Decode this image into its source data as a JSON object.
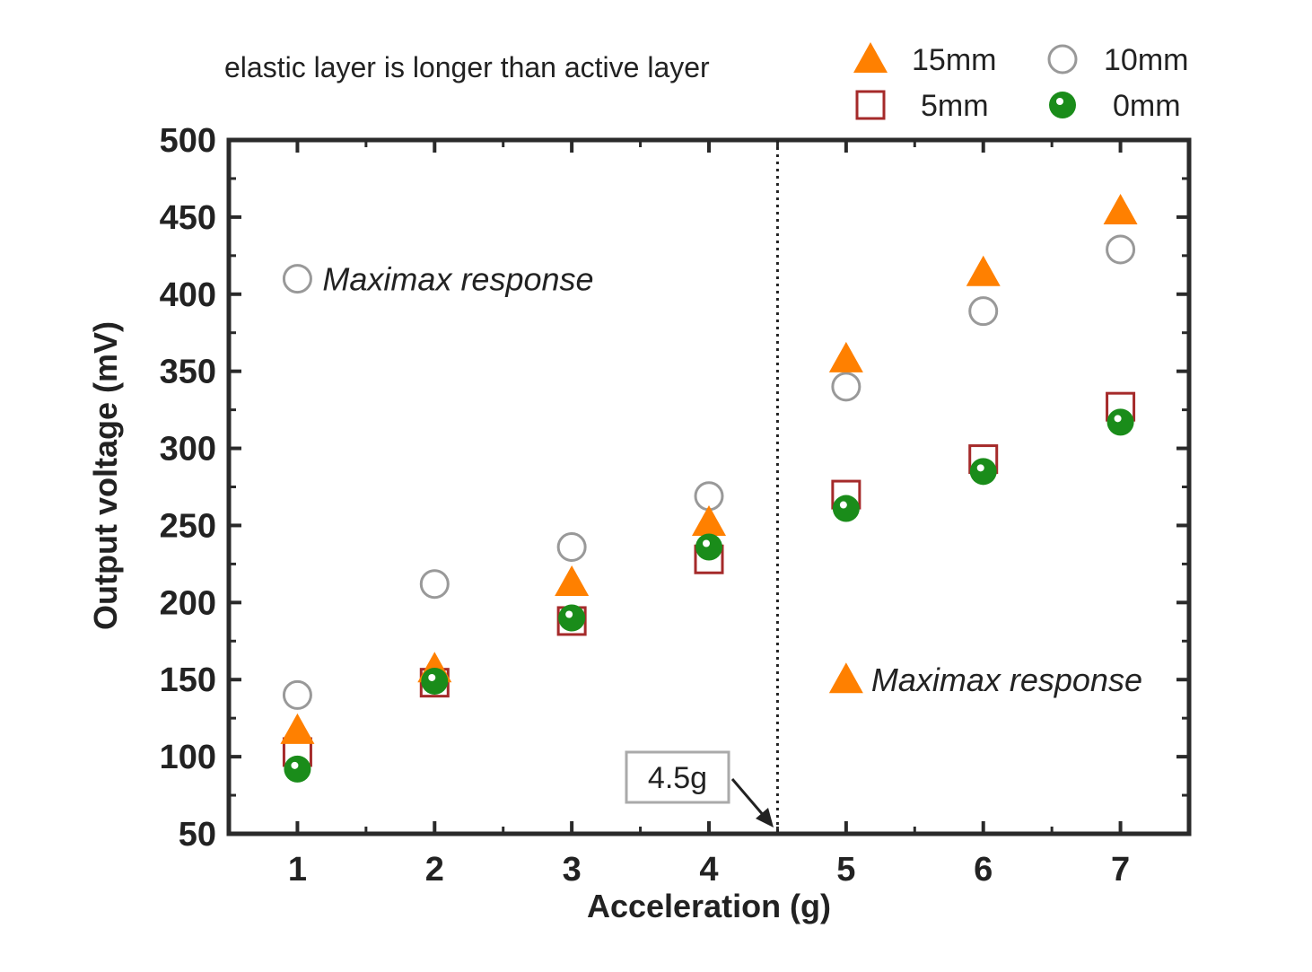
{
  "chart_data": {
    "type": "scatter",
    "title": "elastic layer is longer than active layer",
    "xlabel": "Acceleration (g)",
    "ylabel": "Output voltage (mV)",
    "xlim": [
      0.5,
      7.5
    ],
    "ylim": [
      50,
      500
    ],
    "xticks": [
      1,
      2,
      3,
      4,
      5,
      6,
      7
    ],
    "yticks": [
      50,
      100,
      150,
      200,
      250,
      300,
      350,
      400,
      450,
      500
    ],
    "series": [
      {
        "name": "15mm",
        "marker": "triangle-filled",
        "color": "#ff8000",
        "x": [
          1,
          2,
          3,
          4,
          5,
          6,
          7
        ],
        "y": [
          117,
          157,
          213,
          252,
          358,
          414,
          454
        ]
      },
      {
        "name": "10mm",
        "marker": "circle-open",
        "color": "#999999",
        "x": [
          1,
          2,
          3,
          4,
          5,
          6,
          7
        ],
        "y": [
          140,
          212,
          236,
          269,
          340,
          389,
          429
        ]
      },
      {
        "name": "5mm",
        "marker": "square-open",
        "color": "#a52a2a",
        "x": [
          1,
          2,
          3,
          4,
          5,
          6,
          7
        ],
        "y": [
          103,
          148,
          188,
          228,
          270,
          293,
          327
        ]
      },
      {
        "name": "0mm",
        "marker": "circle-filled",
        "color": "#1a8c1a",
        "x": [
          1,
          2,
          3,
          4,
          5,
          6,
          7
        ],
        "y": [
          92,
          149,
          190,
          236,
          261,
          285,
          317
        ]
      }
    ],
    "threshold": {
      "x": 4.5,
      "style": "dotted",
      "label": "4.5g"
    },
    "annotations": [
      {
        "text": "Maximax response",
        "marker": "circle-open",
        "region": "left",
        "at": {
          "x": 1.0,
          "y": 410
        }
      },
      {
        "text": "Maximax response",
        "marker": "triangle-filled",
        "region": "right",
        "at": {
          "x": 5.0,
          "y": 150
        }
      }
    ],
    "legend_position": "top-right"
  }
}
